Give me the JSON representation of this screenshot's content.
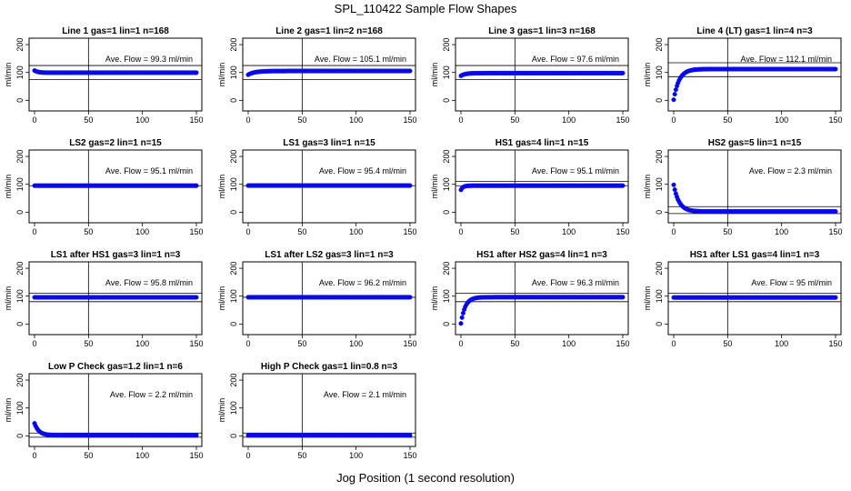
{
  "title": "SPL_110422  Sample Flow Shapes",
  "xlabel": "Jog Position (1 second resolution)",
  "colors": {
    "points": "#0000ff",
    "points_edge": "#1a1acc",
    "axis": "#000000"
  },
  "chart_data": [
    {
      "type": "scatter",
      "title": "Line 1 gas=1 lin=1 n=168",
      "ylabel": "ml/min",
      "annotation": "Ave. Flow = 99.3  ml/min",
      "xlim": [
        0,
        150
      ],
      "ylim": [
        -25,
        210
      ],
      "xticks": [
        0,
        50,
        100,
        150
      ],
      "yticks": [
        0,
        100,
        200
      ],
      "vline": 50,
      "hlines": [
        75,
        125
      ],
      "shape": {
        "kind": "flat",
        "start": 107,
        "final": 99.3
      }
    },
    {
      "type": "scatter",
      "title": "Line 2 gas=1 lin=2 n=168",
      "ylabel": "ml/min",
      "annotation": "Ave. Flow = 105.1  ml/min",
      "xlim": [
        0,
        150
      ],
      "ylim": [
        -25,
        210
      ],
      "xticks": [
        0,
        50,
        100,
        150
      ],
      "yticks": [
        0,
        100,
        200
      ],
      "vline": 50,
      "hlines": [
        75,
        125
      ],
      "shape": {
        "kind": "rise",
        "start": 92,
        "final": 105.1,
        "tau": 6
      }
    },
    {
      "type": "scatter",
      "title": "Line 3 gas=1 lin=3 n=168",
      "ylabel": "ml/min",
      "annotation": "Ave. Flow = 97.6  ml/min",
      "xlim": [
        0,
        150
      ],
      "ylim": [
        -25,
        210
      ],
      "xticks": [
        0,
        50,
        100,
        150
      ],
      "yticks": [
        0,
        100,
        200
      ],
      "vline": 50,
      "hlines": [
        75,
        125
      ],
      "shape": {
        "kind": "rise",
        "start": 88,
        "final": 97.6,
        "tau": 4
      }
    },
    {
      "type": "scatter",
      "title": "Line 4 (LT) gas=1 lin=4 n=3",
      "ylabel": "ml/min",
      "annotation": "Ave. Flow = 112.1  ml/min",
      "xlim": [
        0,
        150
      ],
      "ylim": [
        -25,
        210
      ],
      "xticks": [
        0,
        50,
        100,
        150
      ],
      "yticks": [
        0,
        100,
        200
      ],
      "vline": 50,
      "hlines": [
        85,
        135
      ],
      "shape": {
        "kind": "rise",
        "start": 2,
        "final": 112.1,
        "tau": 5
      }
    },
    {
      "type": "scatter",
      "title": "LS2 gas=2 lin=1 n=15",
      "ylabel": "ml/min",
      "annotation": "Ave. Flow = 95.1  ml/min",
      "xlim": [
        0,
        150
      ],
      "ylim": [
        -25,
        210
      ],
      "xticks": [
        0,
        50,
        100,
        150
      ],
      "yticks": [
        0,
        100,
        200
      ],
      "vline": 50,
      "hlines": [
        95
      ],
      "shape": {
        "kind": "flat",
        "start": 95.1,
        "final": 95.1
      }
    },
    {
      "type": "scatter",
      "title": "LS1 gas=3 lin=1 n=15",
      "ylabel": "ml/min",
      "annotation": "Ave. Flow = 95.4  ml/min",
      "xlim": [
        0,
        150
      ],
      "ylim": [
        -25,
        210
      ],
      "xticks": [
        0,
        50,
        100,
        150
      ],
      "yticks": [
        0,
        100,
        200
      ],
      "vline": 50,
      "hlines": [
        95
      ],
      "shape": {
        "kind": "flat",
        "start": 95.4,
        "final": 95.4
      }
    },
    {
      "type": "scatter",
      "title": "HS1 gas=4 lin=1 n=15",
      "ylabel": "ml/min",
      "annotation": "Ave. Flow = 95.1  ml/min",
      "xlim": [
        0,
        150
      ],
      "ylim": [
        -25,
        210
      ],
      "xticks": [
        0,
        50,
        100,
        150
      ],
      "yticks": [
        0,
        100,
        200
      ],
      "vline": 50,
      "hlines": [
        95,
        110
      ],
      "shape": {
        "kind": "rise",
        "start": 80,
        "final": 95.1,
        "tau": 2
      }
    },
    {
      "type": "scatter",
      "title": "HS2 gas=5 lin=1 n=15",
      "ylabel": "ml/min",
      "annotation": "Ave. Flow = 2.3  ml/min",
      "xlim": [
        0,
        150
      ],
      "ylim": [
        -25,
        210
      ],
      "xticks": [
        0,
        50,
        100,
        150
      ],
      "yticks": [
        0,
        100,
        200
      ],
      "vline": 50,
      "hlines": [
        -5,
        20
      ],
      "shape": {
        "kind": "decay",
        "start": 98,
        "final": 2.3,
        "tau": 5
      }
    },
    {
      "type": "scatter",
      "title": "LS1 after HS1 gas=3 lin=1 n=3",
      "ylabel": "ml/min",
      "annotation": "Ave. Flow = 95.8  ml/min",
      "xlim": [
        0,
        150
      ],
      "ylim": [
        -25,
        210
      ],
      "xticks": [
        0,
        50,
        100,
        150
      ],
      "yticks": [
        0,
        100,
        200
      ],
      "vline": 50,
      "hlines": [
        80,
        110
      ],
      "shape": {
        "kind": "flat",
        "start": 95.8,
        "final": 95.8
      }
    },
    {
      "type": "scatter",
      "title": "LS1 after LS2 gas=3 lin=1 n=3",
      "ylabel": "ml/min",
      "annotation": "Ave. Flow = 96.2  ml/min",
      "xlim": [
        0,
        150
      ],
      "ylim": [
        -25,
        210
      ],
      "xticks": [
        0,
        50,
        100,
        150
      ],
      "yticks": [
        0,
        100,
        200
      ],
      "vline": 50,
      "hlines": [
        96
      ],
      "shape": {
        "kind": "flat",
        "start": 96.2,
        "final": 96.2
      }
    },
    {
      "type": "scatter",
      "title": "HS1 after HS2 gas=4 lin=1 n=3",
      "ylabel": "ml/min",
      "annotation": "Ave. Flow = 96.3  ml/min",
      "xlim": [
        0,
        150
      ],
      "ylim": [
        -25,
        210
      ],
      "xticks": [
        0,
        50,
        100,
        150
      ],
      "yticks": [
        0,
        100,
        200
      ],
      "vline": 50,
      "hlines": [
        80,
        110
      ],
      "shape": {
        "kind": "rise",
        "start": 2,
        "final": 96.3,
        "tau": 4
      }
    },
    {
      "type": "scatter",
      "title": "HS1 after LS1 gas=4 lin=1 n=3",
      "ylabel": "ml/min",
      "annotation": "Ave. Flow = 95  ml/min",
      "xlim": [
        0,
        150
      ],
      "ylim": [
        -25,
        210
      ],
      "xticks": [
        0,
        50,
        100,
        150
      ],
      "yticks": [
        0,
        100,
        200
      ],
      "vline": 50,
      "hlines": [
        80,
        110
      ],
      "shape": {
        "kind": "flat",
        "start": 95,
        "final": 95
      }
    },
    {
      "type": "scatter",
      "title": "Low P Check gas=1.2 lin=1 n=6",
      "ylabel": "ml/min",
      "annotation": "Ave. Flow = 2.2  ml/min",
      "xlim": [
        0,
        150
      ],
      "ylim": [
        -25,
        210
      ],
      "xticks": [
        0,
        50,
        100,
        150
      ],
      "yticks": [
        0,
        100,
        200
      ],
      "vline": 50,
      "hlines": [
        -5,
        10
      ],
      "shape": {
        "kind": "decay",
        "start": 45,
        "final": 2.2,
        "tau": 4
      }
    },
    {
      "type": "scatter",
      "title": "High P Check gas=1 lin=0.8 n=3",
      "ylabel": "ml/min",
      "annotation": "Ave. Flow = 2.1  ml/min",
      "xlim": [
        0,
        150
      ],
      "ylim": [
        -25,
        210
      ],
      "xticks": [
        0,
        50,
        100,
        150
      ],
      "yticks": [
        0,
        100,
        200
      ],
      "vline": 50,
      "hlines": [
        -5,
        10
      ],
      "shape": {
        "kind": "flat",
        "start": 2.1,
        "final": 2.1
      }
    }
  ]
}
